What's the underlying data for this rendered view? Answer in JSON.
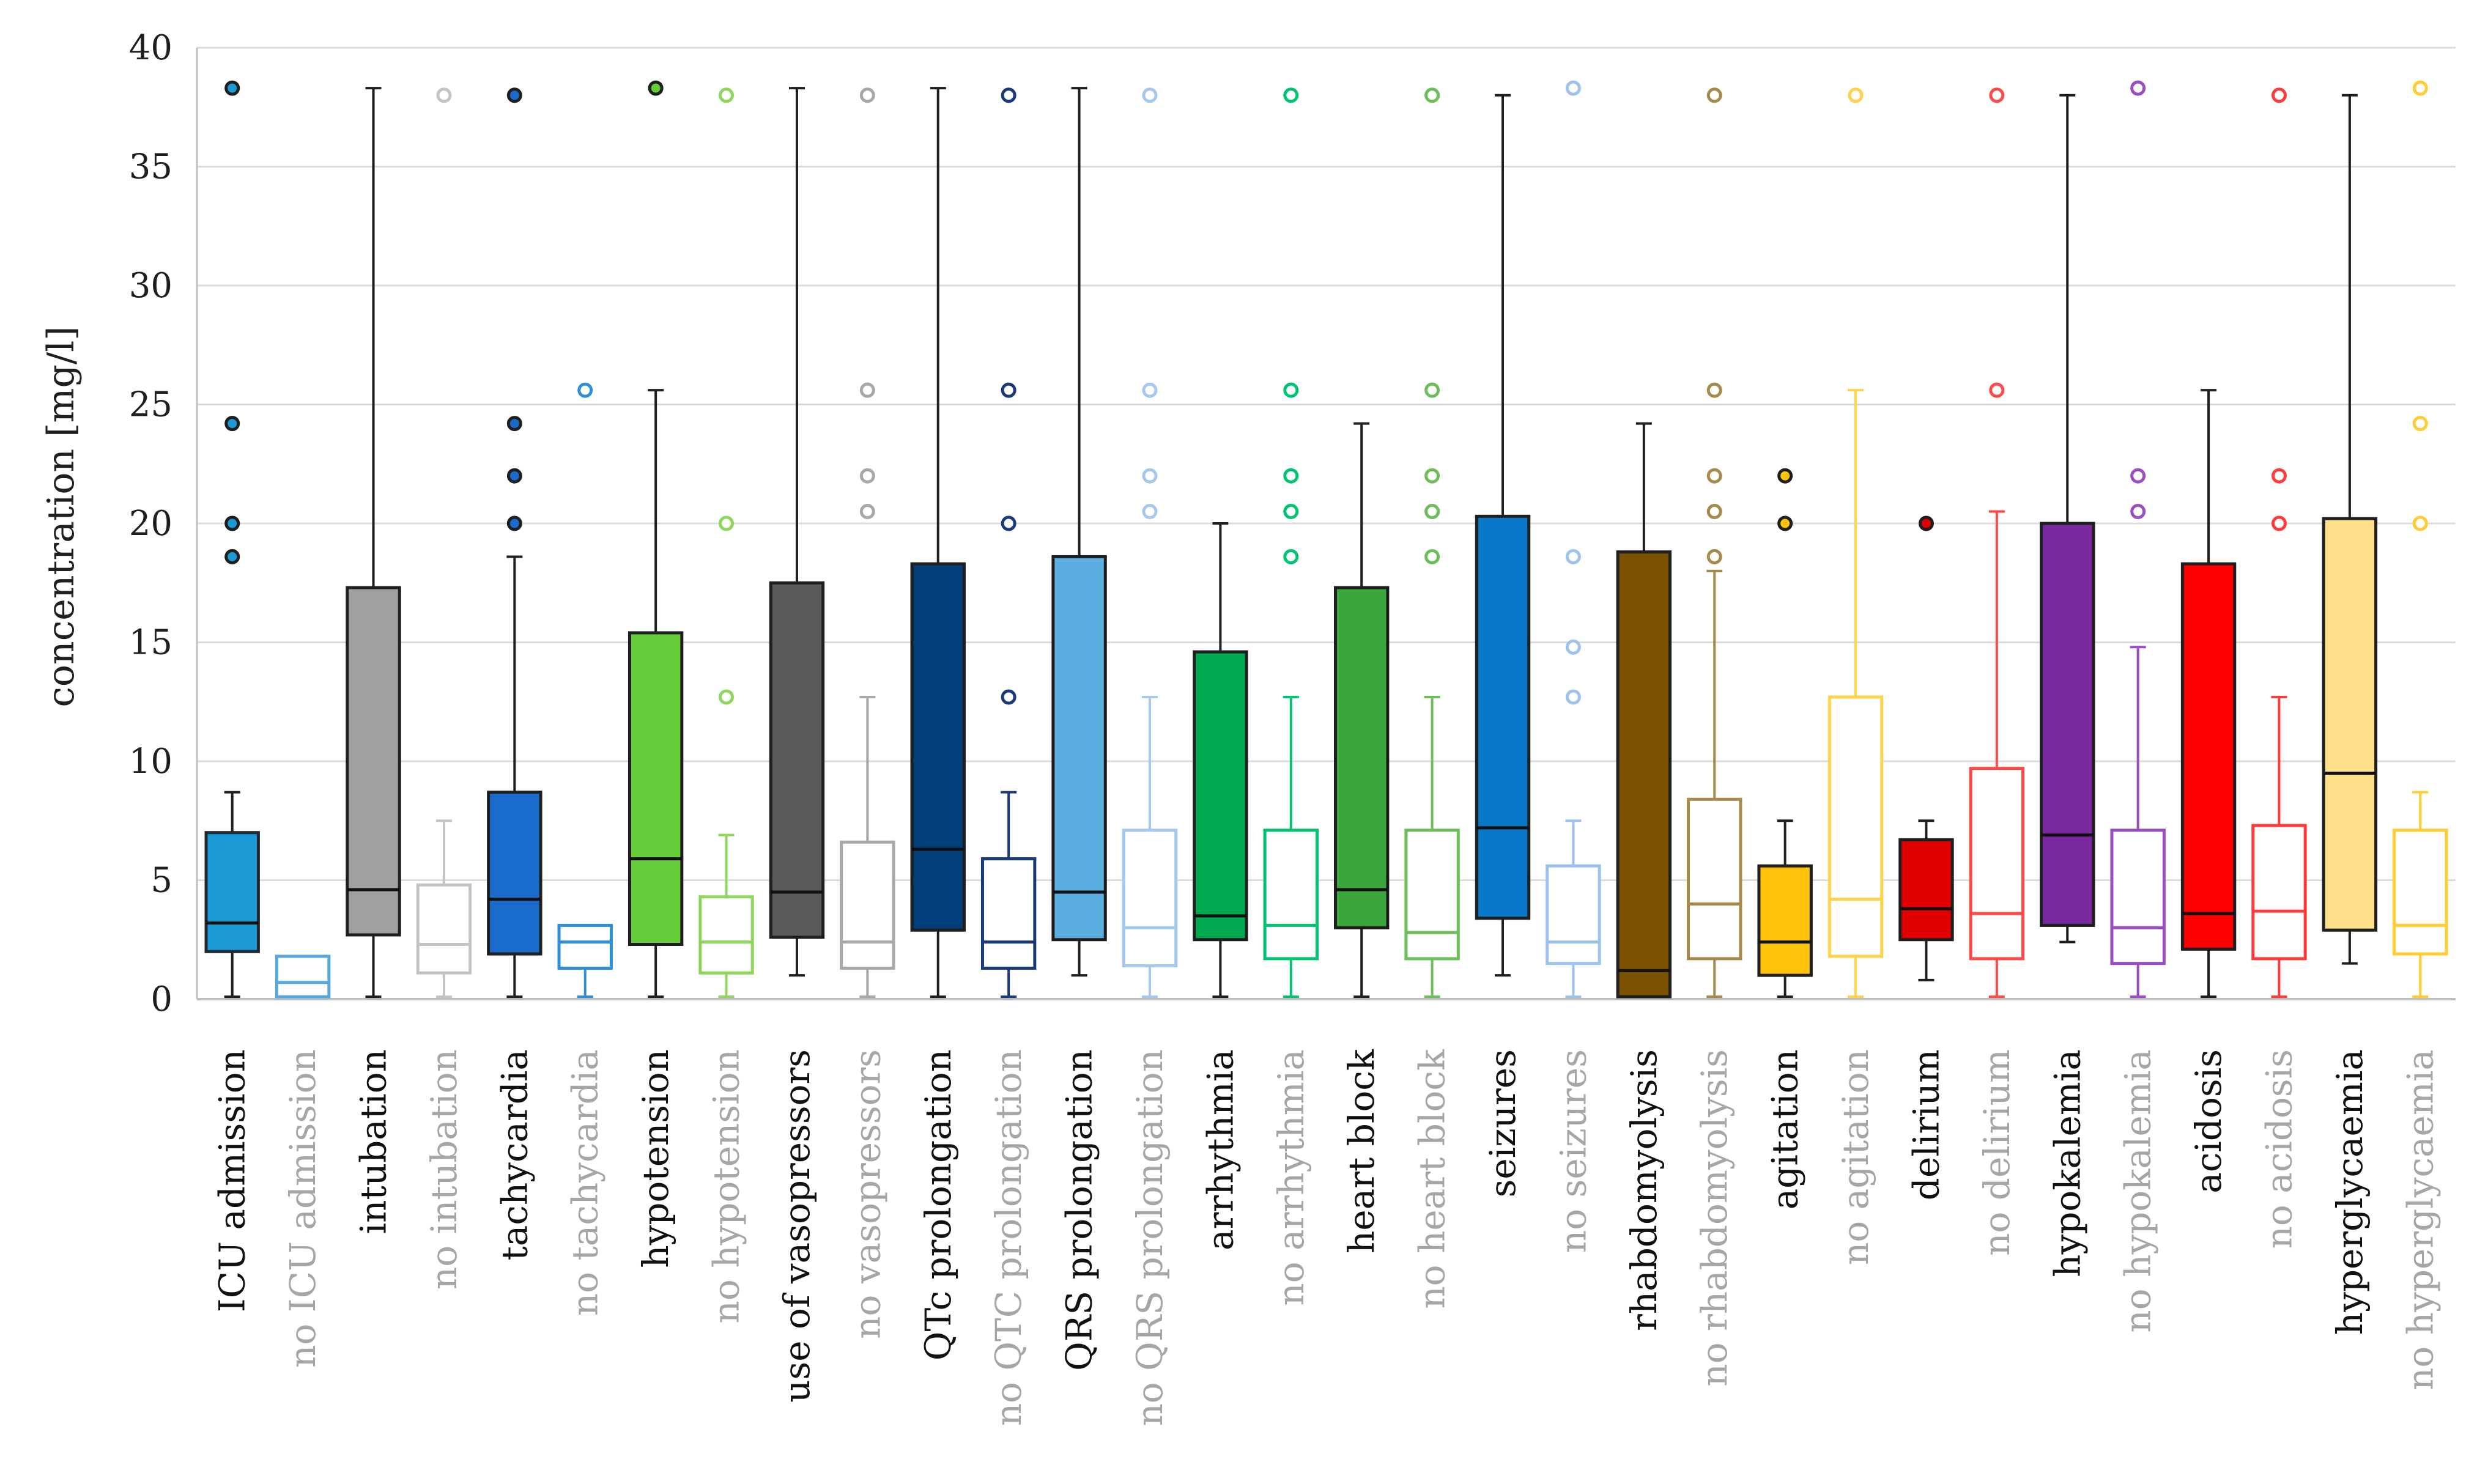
{
  "chart_data": {
    "type": "box",
    "ylabel": "concentration [mg/l]",
    "ylim": [
      0,
      40
    ],
    "yticks": [
      0,
      5,
      10,
      15,
      20,
      25,
      30,
      35,
      40
    ],
    "grid": true,
    "categories": [
      {
        "label": "ICU admission",
        "present": true,
        "fill": "#1b9ad6",
        "edge": "#1f2a33",
        "whisker_color": "#1f1f1f",
        "q1": 2.0,
        "median": 3.2,
        "q3": 7.0,
        "min": 0.1,
        "max": 8.7,
        "outliers": [
          18.6,
          20.0,
          24.2,
          38.3
        ]
      },
      {
        "label": "no ICU admission",
        "present": false,
        "fill": "none",
        "edge": "#58a8e0",
        "whisker_color": "#58a8e0",
        "q1": 0.1,
        "median": 0.7,
        "q3": 1.8,
        "min": 0.1,
        "max": 1.8,
        "outliers": []
      },
      {
        "label": "intubation",
        "present": true,
        "fill": "#a0a0a0",
        "edge": "#1f1f1f",
        "whisker_color": "#1f1f1f",
        "q1": 2.7,
        "median": 4.6,
        "q3": 17.3,
        "min": 0.1,
        "max": 38.3,
        "outliers": []
      },
      {
        "label": "no intubation",
        "present": false,
        "fill": "none",
        "edge": "#c4c4c4",
        "whisker_color": "#c4c4c4",
        "q1": 1.1,
        "median": 2.3,
        "q3": 4.8,
        "min": 0.1,
        "max": 7.5,
        "outliers": [
          38.0
        ]
      },
      {
        "label": "tachycardia",
        "present": true,
        "fill": "#1a6ccc",
        "edge": "#1f1f1f",
        "whisker_color": "#1f1f1f",
        "q1": 1.9,
        "median": 4.2,
        "q3": 8.7,
        "min": 0.1,
        "max": 18.6,
        "outliers": [
          20.0,
          22.0,
          24.2,
          38.0
        ]
      },
      {
        "label": "no tachycardia",
        "present": false,
        "fill": "none",
        "edge": "#2f8fd6",
        "whisker_color": "#2f8fd6",
        "q1": 1.3,
        "median": 2.4,
        "q3": 3.1,
        "min": 0.1,
        "max": 3.1,
        "outliers": [
          25.6
        ]
      },
      {
        "label": "hypotension",
        "present": true,
        "fill": "#66cc3a",
        "edge": "#1f1f1f",
        "whisker_color": "#1f1f1f",
        "q1": 2.3,
        "median": 5.9,
        "q3": 15.4,
        "min": 0.1,
        "max": 25.6,
        "outliers": [
          38.3
        ]
      },
      {
        "label": "no hypotension",
        "present": false,
        "fill": "none",
        "edge": "#8fd65e",
        "whisker_color": "#8fd65e",
        "q1": 1.1,
        "median": 2.4,
        "q3": 4.3,
        "min": 0.1,
        "max": 6.9,
        "outliers": [
          12.7,
          20.0,
          38.0
        ]
      },
      {
        "label": "use of vasopressors",
        "present": true,
        "fill": "#5a5a5a",
        "edge": "#1f1f1f",
        "whisker_color": "#1f1f1f",
        "q1": 2.6,
        "median": 4.5,
        "q3": 17.5,
        "min": 1.0,
        "max": 38.3,
        "outliers": []
      },
      {
        "label": "no vasopressors",
        "present": false,
        "fill": "none",
        "edge": "#a8a8a8",
        "whisker_color": "#a8a8a8",
        "q1": 1.3,
        "median": 2.4,
        "q3": 6.6,
        "min": 0.1,
        "max": 12.7,
        "outliers": [
          20.5,
          22.0,
          25.6,
          38.0
        ]
      },
      {
        "label": "QTc prolongation",
        "present": true,
        "fill": "#003f7a",
        "edge": "#1f1f1f",
        "whisker_color": "#1f1f1f",
        "q1": 2.9,
        "median": 6.3,
        "q3": 18.3,
        "min": 0.1,
        "max": 38.3,
        "outliers": []
      },
      {
        "label": "no QTC prolongation",
        "present": false,
        "fill": "none",
        "edge": "#1a3a7a",
        "whisker_color": "#1a3a7a",
        "q1": 1.3,
        "median": 2.4,
        "q3": 5.9,
        "min": 0.1,
        "max": 8.7,
        "outliers": [
          12.7,
          20.0,
          25.6,
          38.0
        ]
      },
      {
        "label": "QRS prolongation",
        "present": true,
        "fill": "#5aaee0",
        "edge": "#1f1f1f",
        "whisker_color": "#1f1f1f",
        "q1": 2.5,
        "median": 4.5,
        "q3": 18.6,
        "min": 1.0,
        "max": 38.3,
        "outliers": []
      },
      {
        "label": "no QRS prolongation",
        "present": false,
        "fill": "none",
        "edge": "#a6c8ee",
        "whisker_color": "#a6c8ee",
        "q1": 1.4,
        "median": 3.0,
        "q3": 7.1,
        "min": 0.1,
        "max": 12.7,
        "outliers": [
          20.5,
          22.0,
          25.6,
          38.0
        ]
      },
      {
        "label": "arrhythmia",
        "present": true,
        "fill": "#00a84f",
        "edge": "#1f1f1f",
        "whisker_color": "#1f1f1f",
        "q1": 2.5,
        "median": 3.5,
        "q3": 14.6,
        "min": 0.1,
        "max": 20.0,
        "outliers": []
      },
      {
        "label": "no arrhythmia",
        "present": false,
        "fill": "none",
        "edge": "#00c470",
        "whisker_color": "#00c470",
        "q1": 1.7,
        "median": 3.1,
        "q3": 7.1,
        "min": 0.1,
        "max": 12.7,
        "outliers": [
          18.6,
          20.5,
          22.0,
          25.6,
          38.0
        ]
      },
      {
        "label": "heart block",
        "present": true,
        "fill": "#3aa63a",
        "edge": "#1f1f1f",
        "whisker_color": "#1f1f1f",
        "q1": 3.0,
        "median": 4.6,
        "q3": 17.3,
        "min": 0.1,
        "max": 24.2,
        "outliers": []
      },
      {
        "label": "no heart block",
        "present": false,
        "fill": "none",
        "edge": "#6cbf58",
        "whisker_color": "#6cbf58",
        "q1": 1.7,
        "median": 2.8,
        "q3": 7.1,
        "min": 0.1,
        "max": 12.7,
        "outliers": [
          18.6,
          20.5,
          22.0,
          25.6,
          38.0
        ]
      },
      {
        "label": "seizures",
        "present": true,
        "fill": "#0a78c8",
        "edge": "#1f1f1f",
        "whisker_color": "#1f1f1f",
        "q1": 3.4,
        "median": 7.2,
        "q3": 20.3,
        "min": 1.0,
        "max": 38.0,
        "outliers": []
      },
      {
        "label": "no seizures",
        "present": false,
        "fill": "none",
        "edge": "#9ec2ee",
        "whisker_color": "#9ec2ee",
        "q1": 1.5,
        "median": 2.4,
        "q3": 5.6,
        "min": 0.1,
        "max": 7.5,
        "outliers": [
          12.7,
          14.8,
          18.6,
          38.3
        ]
      },
      {
        "label": "rhabdomyolysis",
        "present": true,
        "fill": "#7a5200",
        "edge": "#1f1f1f",
        "whisker_color": "#1f1f1f",
        "q1": 0.1,
        "median": 1.2,
        "q3": 18.8,
        "min": 0.1,
        "max": 24.2,
        "outliers": []
      },
      {
        "label": "no rhabdomyolysis",
        "present": false,
        "fill": "none",
        "edge": "#a68a4a",
        "whisker_color": "#a68a4a",
        "q1": 1.7,
        "median": 4.0,
        "q3": 8.4,
        "min": 0.1,
        "max": 18.0,
        "outliers": [
          18.6,
          20.5,
          22.0,
          25.6,
          38.0
        ]
      },
      {
        "label": "agitation",
        "present": true,
        "fill": "#ffc20a",
        "edge": "#1f1f1f",
        "whisker_color": "#1f1f1f",
        "q1": 1.0,
        "median": 2.4,
        "q3": 5.6,
        "min": 0.1,
        "max": 7.5,
        "outliers": [
          20.0,
          22.0
        ]
      },
      {
        "label": "no agitation",
        "present": false,
        "fill": "none",
        "edge": "#ffd24a",
        "whisker_color": "#ffd24a",
        "q1": 1.8,
        "median": 4.2,
        "q3": 12.7,
        "min": 0.1,
        "max": 25.6,
        "outliers": [
          38.0
        ]
      },
      {
        "label": "delirium",
        "present": true,
        "fill": "#e00000",
        "edge": "#1f1f1f",
        "whisker_color": "#1f1f1f",
        "q1": 2.5,
        "median": 3.8,
        "q3": 6.7,
        "min": 0.8,
        "max": 7.5,
        "outliers": [
          20.0
        ]
      },
      {
        "label": "no delirium",
        "present": false,
        "fill": "none",
        "edge": "#ff4a4a",
        "whisker_color": "#ff4a4a",
        "q1": 1.7,
        "median": 3.6,
        "q3": 9.7,
        "min": 0.1,
        "max": 20.5,
        "outliers": [
          25.6,
          38.0
        ]
      },
      {
        "label": "hypokalemia",
        "present": true,
        "fill": "#7a28a0",
        "edge": "#1f1f1f",
        "whisker_color": "#1f1f1f",
        "q1": 3.1,
        "median": 6.9,
        "q3": 20.0,
        "min": 2.4,
        "max": 38.0,
        "outliers": []
      },
      {
        "label": "no hypokalemia",
        "present": false,
        "fill": "none",
        "edge": "#9a4ec2",
        "whisker_color": "#9a4ec2",
        "q1": 1.5,
        "median": 3.0,
        "q3": 7.1,
        "min": 0.1,
        "max": 14.8,
        "outliers": [
          20.5,
          22.0,
          38.3
        ]
      },
      {
        "label": "acidosis",
        "present": true,
        "fill": "#ff0000",
        "edge": "#1f1f1f",
        "whisker_color": "#1f1f1f",
        "q1": 2.1,
        "median": 3.6,
        "q3": 18.3,
        "min": 0.1,
        "max": 25.6,
        "outliers": []
      },
      {
        "label": "no acidosis",
        "present": false,
        "fill": "none",
        "edge": "#ff3a3a",
        "whisker_color": "#ff3a3a",
        "q1": 1.7,
        "median": 3.7,
        "q3": 7.3,
        "min": 0.1,
        "max": 12.7,
        "outliers": [
          20.0,
          22.0,
          38.0
        ]
      },
      {
        "label": "hyperglycaemia",
        "present": true,
        "fill": "#ffe08a",
        "edge": "#1f1f1f",
        "whisker_color": "#1f1f1f",
        "q1": 2.9,
        "median": 9.5,
        "q3": 20.2,
        "min": 1.5,
        "max": 38.0,
        "outliers": []
      },
      {
        "label": "no hyperglycaemia",
        "present": false,
        "fill": "none",
        "edge": "#ffcc33",
        "whisker_color": "#ffcc33",
        "q1": 1.9,
        "median": 3.1,
        "q3": 7.1,
        "min": 0.1,
        "max": 8.7,
        "outliers": [
          20.0,
          24.2,
          38.3
        ]
      }
    ]
  },
  "colors": {
    "gridline": "#dcdcdc",
    "axis": "#bfbfbf",
    "present_text": "#111111",
    "absent_text": "#a6a6a6"
  }
}
